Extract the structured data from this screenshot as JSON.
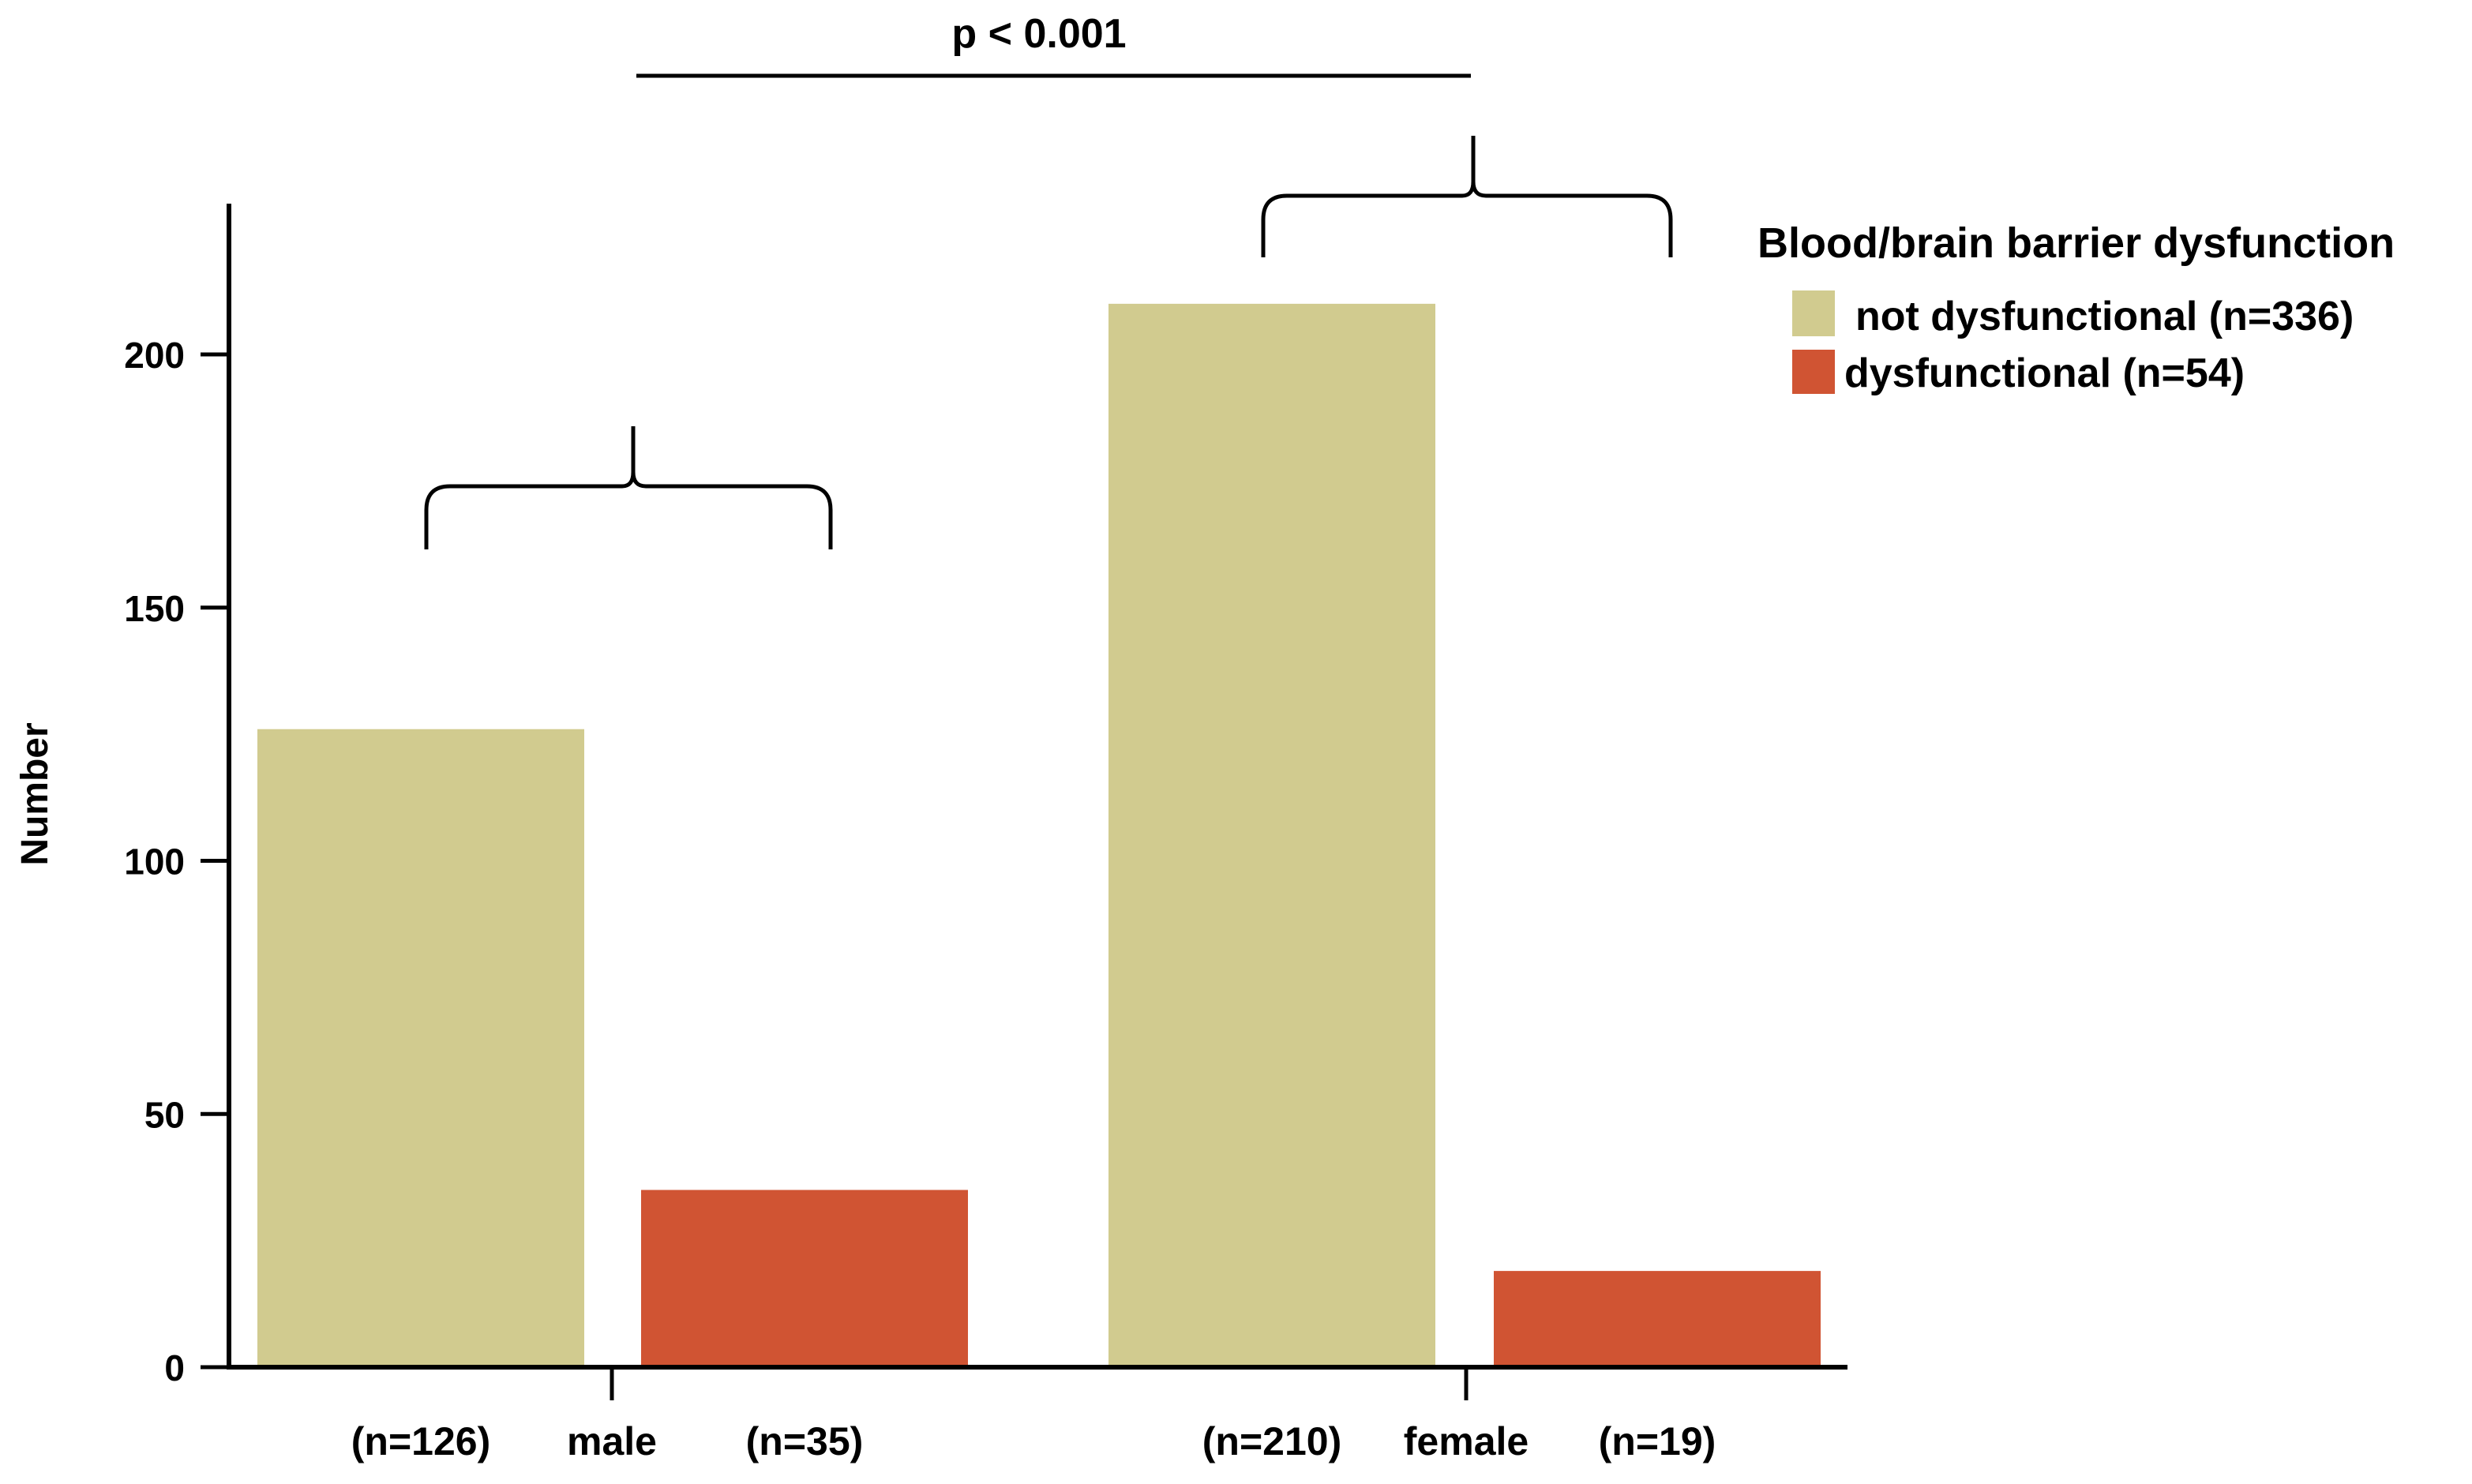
{
  "chart_data": {
    "type": "bar",
    "title": "",
    "xlabel": "",
    "ylabel": "Number",
    "ylim": [
      0,
      230
    ],
    "yticks": [
      0,
      50,
      100,
      150,
      200
    ],
    "grid": false,
    "groups": [
      {
        "name": "male",
        "bars": [
          {
            "series": "not dysfunctional",
            "value": 126,
            "label": "(n=126)"
          },
          {
            "series": "dysfunctional",
            "value": 35,
            "label": "(n=35)"
          }
        ]
      },
      {
        "name": "female",
        "bars": [
          {
            "series": "not dysfunctional",
            "value": 210,
            "label": "(n=210)"
          },
          {
            "series": "dysfunctional",
            "value": 19,
            "label": "(n=19)"
          }
        ]
      }
    ],
    "series": [
      {
        "name": "not dysfunctional",
        "color": "#D1CB8F"
      },
      {
        "name": "dysfunctional",
        "color": "#D05433"
      }
    ],
    "legend": {
      "title": "Blood/brain barrier dysfunction",
      "entries": [
        "not dysfunctional (n=336)",
        "dysfunctional (n=54)"
      ],
      "placement": "top-right"
    },
    "annotation": {
      "text": "p < 0.001",
      "between": [
        "male",
        "female"
      ]
    }
  }
}
